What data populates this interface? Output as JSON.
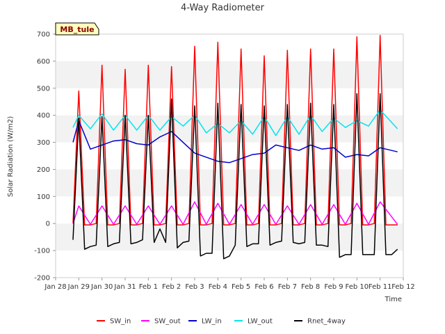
{
  "chart_data": {
    "type": "line",
    "title": "4-Way Radiometer",
    "xlabel": "Time",
    "ylabel": "Solar Radiation (W/m2)",
    "site_label": "MB_tule",
    "ylim": [
      -200,
      700
    ],
    "yticks": [
      -200,
      -100,
      0,
      100,
      200,
      300,
      400,
      500,
      600,
      700
    ],
    "xlim": [
      "2000-01-28",
      "2000-02-12"
    ],
    "xtick_labels": [
      "Jan 28",
      "Jan 29",
      "Jan 30",
      "Jan 31",
      "Feb 1",
      "Feb 2",
      "Feb 3",
      "Feb 4",
      "Feb 5",
      "Feb 6",
      "Feb 7",
      "Feb 8",
      "Feb 9",
      "Feb 10",
      "Feb 11",
      "Feb 12"
    ],
    "grid": "horizontal shaded bands",
    "legend_position": "bottom",
    "series": [
      {
        "name": "SW_in",
        "color": "#ff0000",
        "x": [
          "01-28 18:00",
          "01-29 00:00",
          "01-29 06:00",
          "01-29 12:00",
          "01-29 18:00",
          "01-30 00:00",
          "01-30 06:00",
          "01-30 12:00",
          "01-30 18:00",
          "01-31 00:00",
          "01-31 06:00",
          "01-31 12:00",
          "01-31 18:00",
          "02-01 00:00",
          "02-01 06:00",
          "02-01 12:00",
          "02-01 18:00",
          "02-02 00:00",
          "02-02 06:00",
          "02-02 12:00",
          "02-02 18:00",
          "02-03 00:00",
          "02-03 06:00",
          "02-03 12:00",
          "02-03 18:00",
          "02-04 00:00",
          "02-04 06:00",
          "02-04 12:00",
          "02-04 18:00",
          "02-05 00:00",
          "02-05 06:00",
          "02-05 12:00",
          "02-05 18:00",
          "02-06 00:00",
          "02-06 06:00",
          "02-06 12:00",
          "02-06 18:00",
          "02-07 00:00",
          "02-07 06:00",
          "02-07 12:00",
          "02-07 18:00",
          "02-08 00:00",
          "02-08 06:00",
          "02-08 12:00",
          "02-08 18:00",
          "02-09 00:00",
          "02-09 06:00",
          "02-09 12:00",
          "02-09 18:00",
          "02-10 00:00",
          "02-10 06:00",
          "02-10 12:00",
          "02-10 18:00",
          "02-11 00:00",
          "02-11 06:00",
          "02-11 12:00",
          "02-11 18:00"
        ],
        "values": [
          0,
          490,
          -5,
          -5,
          0,
          585,
          -5,
          -5,
          0,
          570,
          -5,
          -5,
          0,
          585,
          -5,
          -5,
          0,
          580,
          -5,
          -5,
          0,
          655,
          -5,
          -5,
          0,
          670,
          -5,
          -5,
          0,
          645,
          -5,
          -5,
          0,
          620,
          -5,
          -5,
          0,
          640,
          -5,
          -5,
          0,
          645,
          -5,
          -5,
          0,
          645,
          -5,
          -5,
          0,
          690,
          -5,
          -5,
          0,
          695,
          -5,
          -5,
          -5
        ]
      },
      {
        "name": "SW_out",
        "color": "#ff00ff",
        "x": [
          "01-28 18:00",
          "01-29 00:00",
          "01-29 12:00",
          "01-30 00:00",
          "01-30 12:00",
          "01-31 00:00",
          "01-31 12:00",
          "02-01 00:00",
          "02-01 12:00",
          "02-02 00:00",
          "02-02 12:00",
          "02-03 00:00",
          "02-03 12:00",
          "02-04 00:00",
          "02-04 12:00",
          "02-05 00:00",
          "02-05 12:00",
          "02-06 00:00",
          "02-06 12:00",
          "02-07 00:00",
          "02-07 12:00",
          "02-08 00:00",
          "02-08 12:00",
          "02-09 00:00",
          "02-09 12:00",
          "02-10 00:00",
          "02-10 12:00",
          "02-11 00:00",
          "02-11 18:00"
        ],
        "values": [
          0,
          65,
          -3,
          65,
          -3,
          65,
          -3,
          65,
          -3,
          65,
          -3,
          80,
          -3,
          75,
          -3,
          70,
          -3,
          70,
          -3,
          65,
          -3,
          70,
          -3,
          70,
          -3,
          75,
          -3,
          80,
          -3
        ]
      },
      {
        "name": "LW_in",
        "color": "#0000cd",
        "x": [
          "01-28 18:00",
          "01-29 00:00",
          "01-29 12:00",
          "01-30 00:00",
          "01-30 12:00",
          "01-31 00:00",
          "01-31 12:00",
          "02-01 00:00",
          "02-01 12:00",
          "02-02 00:00",
          "02-02 12:00",
          "02-03 00:00",
          "02-03 12:00",
          "02-04 00:00",
          "02-04 12:00",
          "02-05 00:00",
          "02-05 12:00",
          "02-06 00:00",
          "02-06 12:00",
          "02-07 00:00",
          "02-07 12:00",
          "02-08 00:00",
          "02-08 12:00",
          "02-09 00:00",
          "02-09 12:00",
          "02-10 00:00",
          "02-10 12:00",
          "02-11 00:00",
          "02-11 18:00"
        ],
        "values": [
          300,
          380,
          275,
          290,
          305,
          310,
          295,
          290,
          320,
          340,
          300,
          260,
          245,
          230,
          225,
          240,
          255,
          260,
          290,
          280,
          270,
          290,
          275,
          280,
          245,
          255,
          250,
          280,
          265
        ]
      },
      {
        "name": "LW_out",
        "color": "#00e5ee",
        "x": [
          "01-28 18:00",
          "01-29 00:00",
          "01-29 12:00",
          "01-30 00:00",
          "01-30 12:00",
          "01-31 00:00",
          "01-31 12:00",
          "02-01 00:00",
          "02-01 12:00",
          "02-02 00:00",
          "02-02 12:00",
          "02-03 00:00",
          "02-03 12:00",
          "02-04 00:00",
          "02-04 12:00",
          "02-05 00:00",
          "02-05 12:00",
          "02-06 00:00",
          "02-06 12:00",
          "02-07 00:00",
          "02-07 12:00",
          "02-08 00:00",
          "02-08 12:00",
          "02-09 00:00",
          "02-09 12:00",
          "02-10 00:00",
          "02-10 12:00",
          "02-11 00:00",
          "02-11 18:00"
        ],
        "values": [
          355,
          400,
          350,
          405,
          345,
          400,
          345,
          400,
          345,
          395,
          360,
          400,
          335,
          370,
          335,
          380,
          330,
          395,
          325,
          395,
          330,
          400,
          340,
          390,
          355,
          380,
          360,
          420,
          350
        ]
      },
      {
        "name": "Rnet_4way",
        "color": "#000000",
        "x": [
          "01-28 18:00",
          "01-29 00:00",
          "01-29 06:00",
          "01-29 12:00",
          "01-29 18:00",
          "01-30 00:00",
          "01-30 06:00",
          "01-30 12:00",
          "01-30 18:00",
          "01-31 00:00",
          "01-31 06:00",
          "01-31 12:00",
          "01-31 18:00",
          "02-01 00:00",
          "02-01 06:00",
          "02-01 12:00",
          "02-01 18:00",
          "02-02 00:00",
          "02-02 06:00",
          "02-02 12:00",
          "02-02 18:00",
          "02-03 00:00",
          "02-03 06:00",
          "02-03 12:00",
          "02-03 18:00",
          "02-04 00:00",
          "02-04 06:00",
          "02-04 12:00",
          "02-04 18:00",
          "02-05 00:00",
          "02-05 06:00",
          "02-05 12:00",
          "02-05 18:00",
          "02-06 00:00",
          "02-06 06:00",
          "02-06 12:00",
          "02-06 18:00",
          "02-07 00:00",
          "02-07 06:00",
          "02-07 12:00",
          "02-07 18:00",
          "02-08 00:00",
          "02-08 06:00",
          "02-08 12:00",
          "02-08 18:00",
          "02-09 00:00",
          "02-09 06:00",
          "02-09 12:00",
          "02-09 18:00",
          "02-10 00:00",
          "02-10 06:00",
          "02-10 12:00",
          "02-10 18:00",
          "02-11 00:00",
          "02-11 06:00",
          "02-11 12:00",
          "02-11 18:00"
        ],
        "values": [
          -60,
          390,
          -95,
          -85,
          -80,
          395,
          -85,
          -75,
          -70,
          400,
          -75,
          -70,
          -60,
          400,
          -70,
          -20,
          -70,
          460,
          -90,
          -70,
          -65,
          435,
          -120,
          -110,
          -110,
          445,
          -130,
          -120,
          -80,
          440,
          -85,
          -75,
          -75,
          435,
          -80,
          -70,
          -65,
          440,
          -70,
          -75,
          -70,
          445,
          -80,
          -80,
          -85,
          440,
          -125,
          -115,
          -115,
          480,
          -115,
          -115,
          -115,
          480,
          -115,
          -115,
          -95
        ]
      }
    ]
  }
}
